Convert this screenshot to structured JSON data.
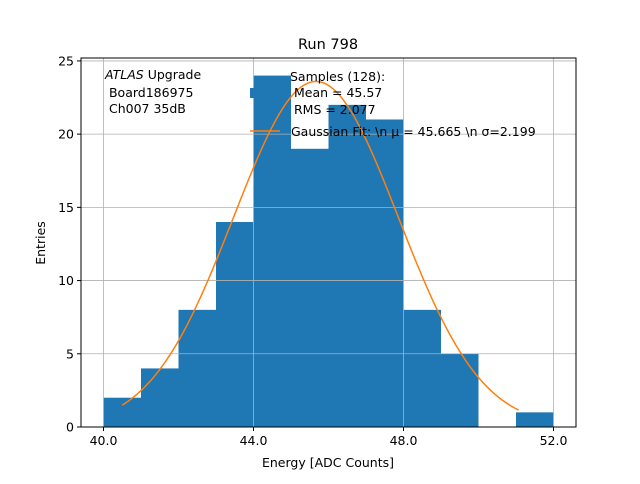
{
  "chart_data": {
    "type": "bar",
    "title": "Run 798",
    "xlabel": "Energy [ADC Counts]",
    "ylabel": "Entries",
    "xlim": [
      39.4,
      52.6
    ],
    "ylim": [
      0,
      25.2
    ],
    "xticks": [
      40.0,
      44.0,
      48.0,
      52.0
    ],
    "xtick_labels": [
      "40.0",
      "44.0",
      "48.0",
      "52.0"
    ],
    "yticks": [
      0,
      5,
      10,
      15,
      20,
      25
    ],
    "ytick_labels": [
      "0",
      "5",
      "10",
      "15",
      "20",
      "25"
    ],
    "grid": true,
    "bin_edges": [
      40,
      41,
      42,
      43,
      44,
      45,
      46,
      47,
      48,
      49,
      50,
      51,
      52
    ],
    "values": [
      2,
      4,
      8,
      14,
      24,
      19,
      22,
      21,
      8,
      5,
      0,
      1
    ],
    "fit": {
      "amplitude": 23.6,
      "mu": 45.665,
      "sigma": 2.199,
      "x_range": [
        40.5,
        51.07
      ]
    },
    "annotation": {
      "italic": "ATLAS",
      "line1_rest": " Upgrade",
      "line2": " Board186975",
      "line3": " Ch007 35dB"
    },
    "legend": {
      "placement": "top-center",
      "entries": [
        {
          "lines": [
            "Samples (128):",
            " Mean = 45.57",
            " RMS = 2.077"
          ]
        },
        {
          "lines": [
            "Gaussian Fit: \\n μ = 45.665 \\n σ=2.199"
          ]
        }
      ]
    },
    "colors": {
      "bar": "#1f77b4",
      "fit": "#ff7f0e",
      "grid": "#b0b0b0"
    }
  }
}
